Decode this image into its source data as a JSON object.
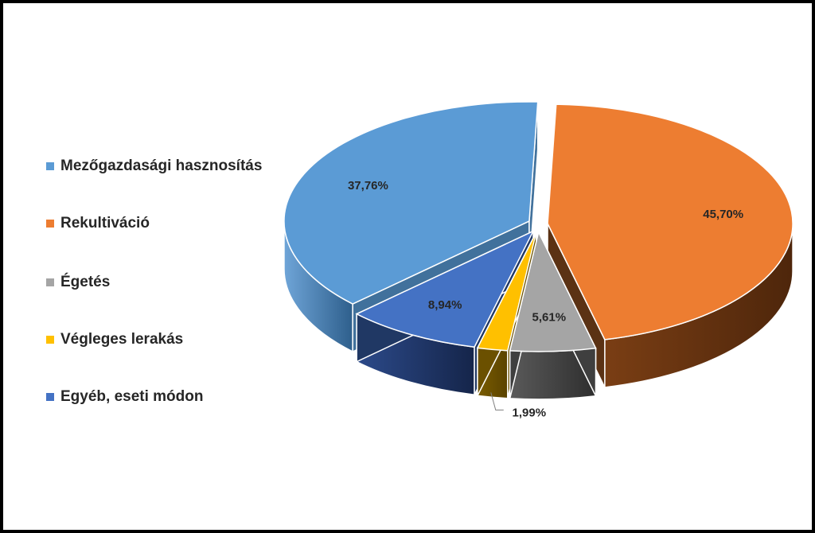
{
  "chart_data": {
    "type": "pie",
    "style": "3d-exploded",
    "legend_position": "left",
    "categories": [
      "Mezőgazdasági hasznosítás",
      "Rekultiváció",
      "Égetés",
      "Végleges lerakás",
      "Egyéb, eseti módon"
    ],
    "values": [
      37.76,
      45.7,
      5.61,
      1.99,
      8.94
    ],
    "value_labels": [
      "37,76%",
      "45,70%",
      "5,61%",
      "1,99%",
      "8,94%"
    ],
    "colors": [
      "#5B9BD5",
      "#ED7D31",
      "#A5A5A5",
      "#FFC000",
      "#4472C4"
    ],
    "side_colors": [
      "#41719C",
      "#5B3214",
      "#3F3F3F",
      "#6B5000",
      "#203864"
    ]
  }
}
